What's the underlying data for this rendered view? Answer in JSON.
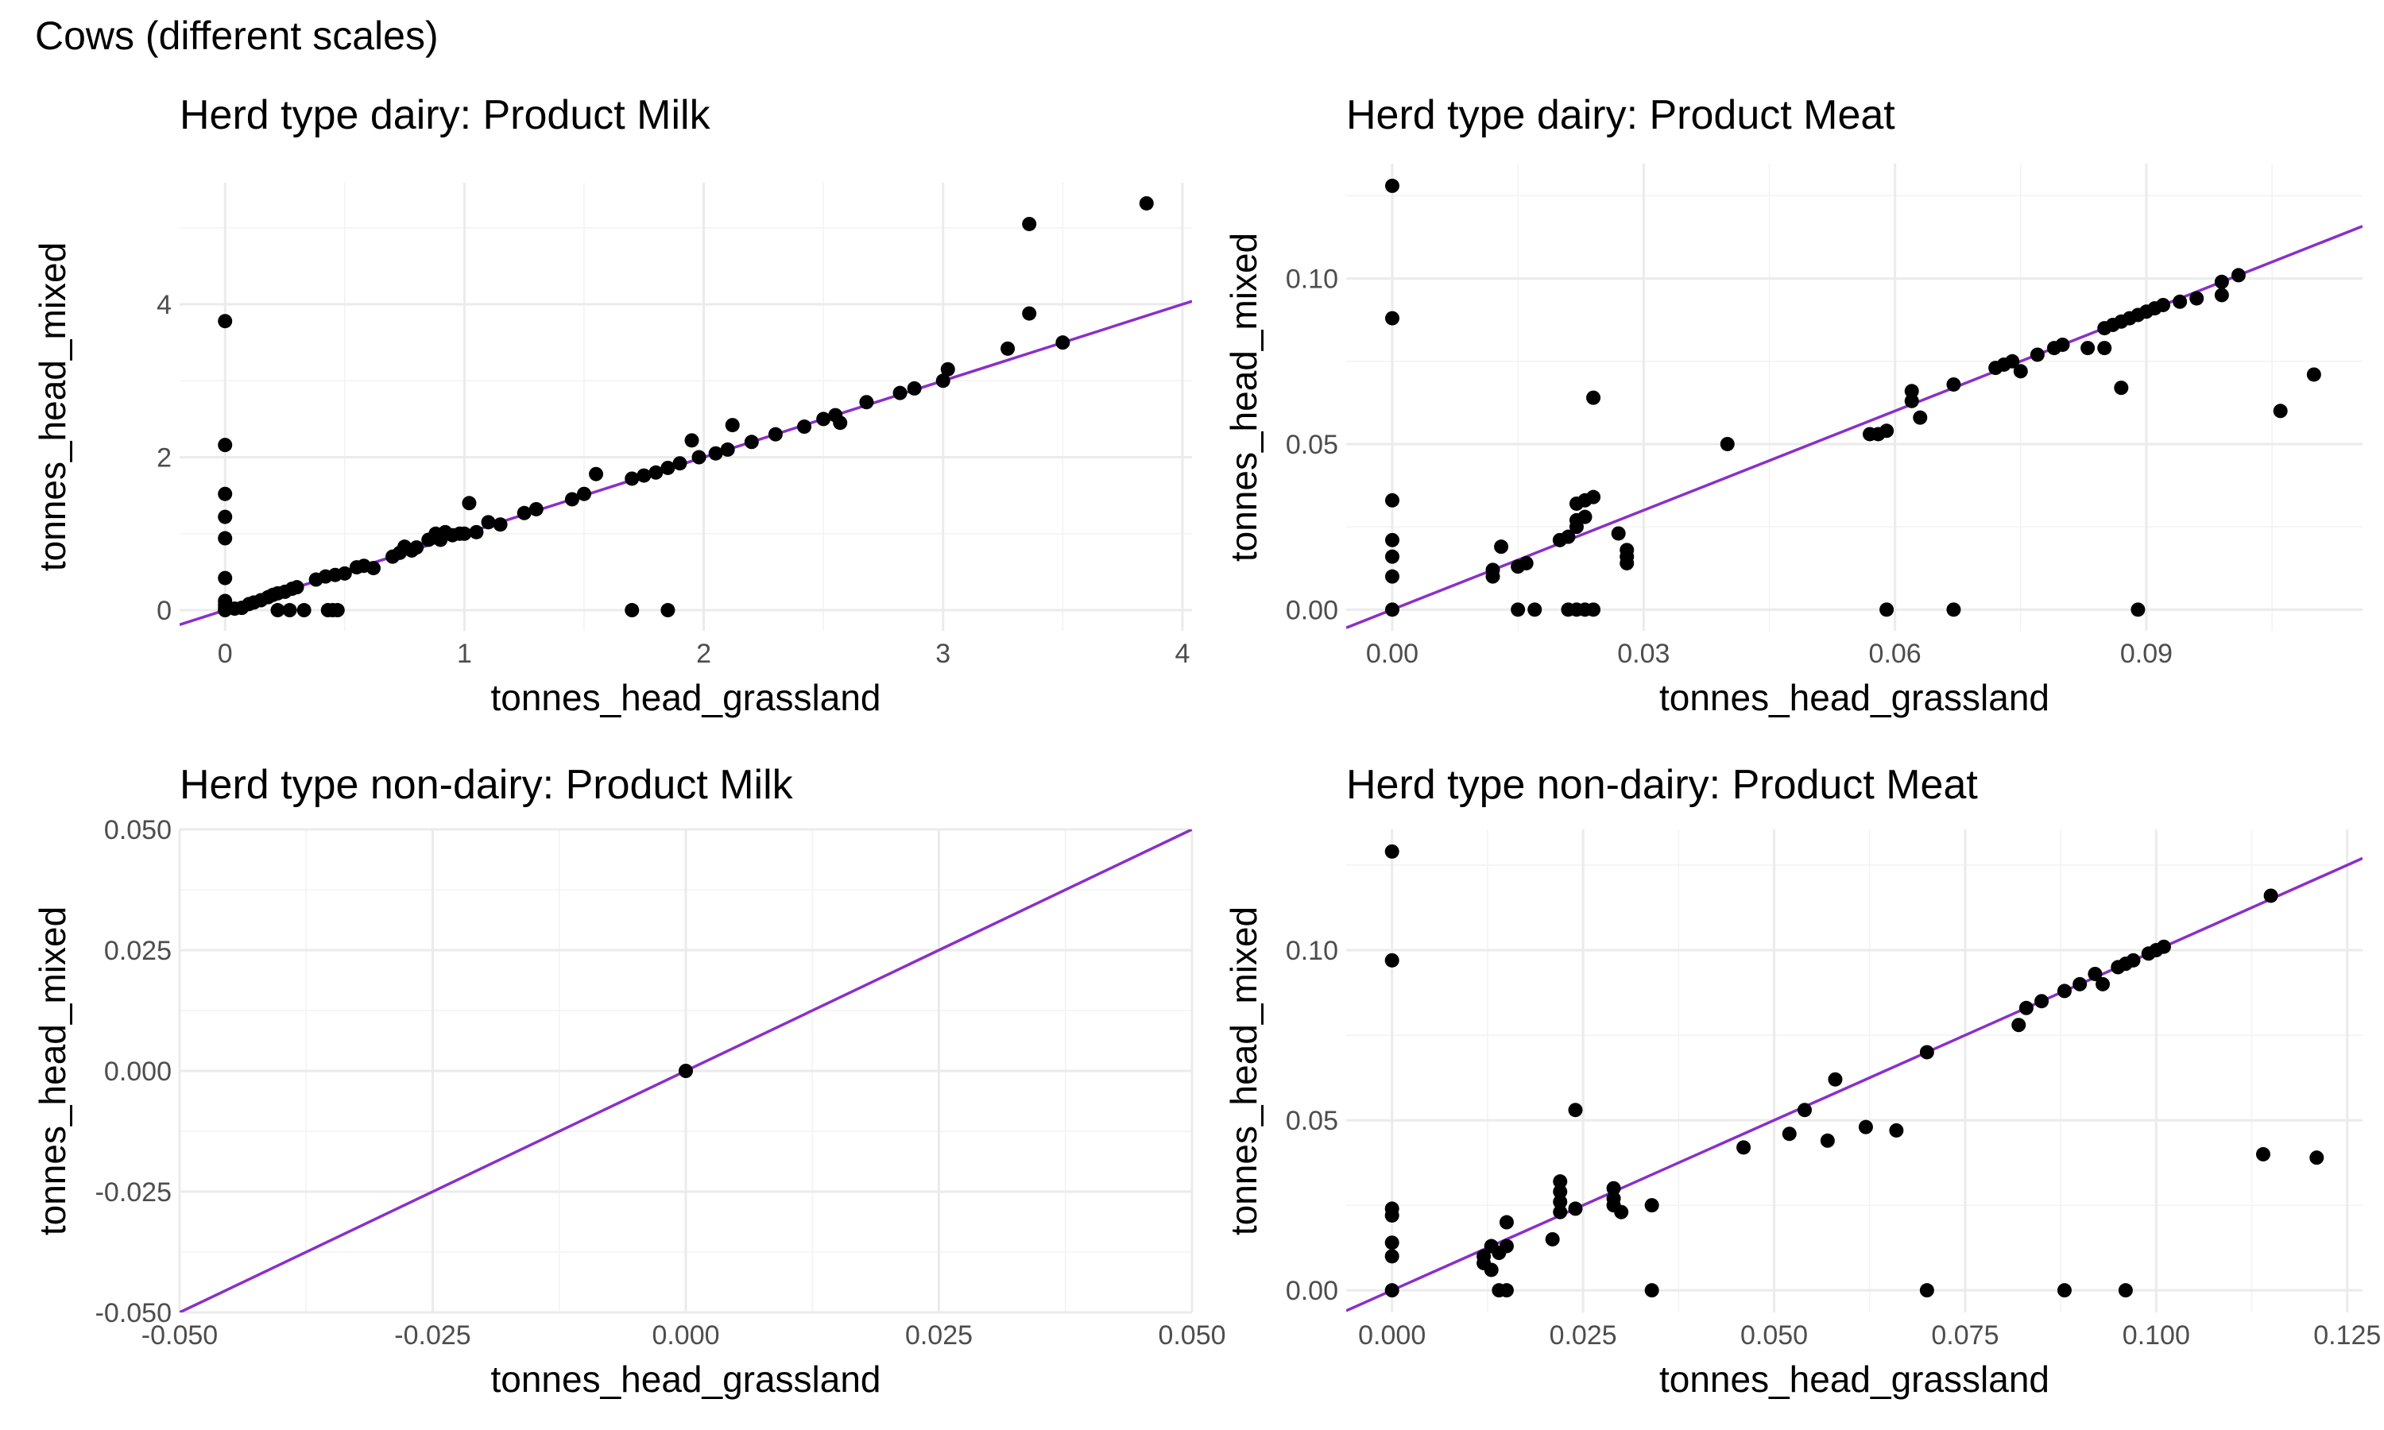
{
  "figure": {
    "title": "Cows (different scales)"
  },
  "colors": {
    "line": "#8b2fc9",
    "points": "#000000",
    "grid": "#ebebeb"
  },
  "chart_data": [
    {
      "id": "dairy-milk",
      "type": "scatter",
      "title": "Herd type dairy: Product Milk",
      "xlabel": "tonnes_head_grassland",
      "ylabel": "tonnes_head_mixed",
      "xlim": [
        -0.19,
        4.04
      ],
      "ylim": [
        -0.27,
        5.59
      ],
      "xticks": [
        0,
        1,
        2,
        3,
        4
      ],
      "xtick_labels": [
        "0",
        "1",
        "2",
        "3",
        "4"
      ],
      "yticks": [
        0,
        2,
        4
      ],
      "ytick_labels": [
        "0",
        "2",
        "4"
      ],
      "grid": true,
      "fit_line": {
        "slope": 1.0,
        "intercept": 0.0
      },
      "points": [
        [
          0,
          3.78
        ],
        [
          0,
          2.16
        ],
        [
          0,
          1.52
        ],
        [
          0,
          1.22
        ],
        [
          0,
          0.94
        ],
        [
          0,
          0.42
        ],
        [
          0,
          0.12
        ],
        [
          0,
          0.07
        ],
        [
          0,
          0.03
        ],
        [
          0,
          0
        ],
        [
          0.04,
          0.02
        ],
        [
          0.07,
          0.03
        ],
        [
          0.1,
          0.08
        ],
        [
          0.12,
          0.1
        ],
        [
          0.15,
          0.13
        ],
        [
          0.18,
          0.17
        ],
        [
          0.2,
          0.2
        ],
        [
          0.22,
          0.22
        ],
        [
          0.25,
          0.24
        ],
        [
          0.28,
          0.28
        ],
        [
          0.3,
          0.3
        ],
        [
          0.22,
          0.0
        ],
        [
          0.27,
          0.0
        ],
        [
          0.33,
          0.0
        ],
        [
          0.43,
          0.0
        ],
        [
          0.45,
          0.0
        ],
        [
          0.47,
          0.0
        ],
        [
          0.38,
          0.4
        ],
        [
          0.42,
          0.44
        ],
        [
          0.46,
          0.46
        ],
        [
          0.5,
          0.48
        ],
        [
          0.55,
          0.56
        ],
        [
          0.58,
          0.58
        ],
        [
          0.62,
          0.55
        ],
        [
          0.7,
          0.7
        ],
        [
          0.73,
          0.75
        ],
        [
          0.75,
          0.83
        ],
        [
          0.78,
          0.78
        ],
        [
          0.8,
          0.82
        ],
        [
          0.85,
          0.92
        ],
        [
          0.88,
          1.0
        ],
        [
          0.9,
          0.92
        ],
        [
          0.92,
          1.02
        ],
        [
          0.95,
          0.98
        ],
        [
          0.98,
          1.0
        ],
        [
          1.0,
          1.0
        ],
        [
          1.02,
          1.4
        ],
        [
          1.05,
          1.02
        ],
        [
          1.1,
          1.15
        ],
        [
          1.15,
          1.12
        ],
        [
          1.25,
          1.27
        ],
        [
          1.3,
          1.32
        ],
        [
          1.45,
          1.45
        ],
        [
          1.5,
          1.52
        ],
        [
          1.55,
          1.78
        ],
        [
          1.7,
          1.72
        ],
        [
          1.75,
          1.76
        ],
        [
          1.8,
          1.8
        ],
        [
          1.85,
          1.86
        ],
        [
          1.9,
          1.92
        ],
        [
          1.95,
          2.22
        ],
        [
          1.98,
          2.0
        ],
        [
          2.05,
          2.05
        ],
        [
          2.1,
          2.1
        ],
        [
          2.12,
          2.42
        ],
        [
          2.2,
          2.2
        ],
        [
          2.3,
          2.3
        ],
        [
          2.42,
          2.4
        ],
        [
          2.5,
          2.5
        ],
        [
          2.55,
          2.55
        ],
        [
          2.57,
          2.45
        ],
        [
          2.68,
          2.72
        ],
        [
          2.82,
          2.84
        ],
        [
          2.88,
          2.9
        ],
        [
          3.0,
          3.0
        ],
        [
          3.02,
          3.15
        ],
        [
          3.27,
          3.42
        ],
        [
          3.36,
          3.88
        ],
        [
          3.36,
          5.05
        ],
        [
          3.5,
          3.5
        ],
        [
          3.85,
          5.32
        ],
        [
          1.7,
          0.0
        ],
        [
          1.85,
          0.0
        ]
      ]
    },
    {
      "id": "dairy-meat",
      "type": "scatter",
      "title": "Herd type dairy: Product Meat",
      "xlabel": "tonnes_head_grassland",
      "ylabel": "tonnes_head_mixed",
      "xlim": [
        -0.0055,
        0.1158
      ],
      "ylim": [
        -0.0064,
        0.1347
      ],
      "xticks": [
        0.0,
        0.03,
        0.06,
        0.09
      ],
      "xtick_labels": [
        "0.00",
        "0.03",
        "0.06",
        "0.09"
      ],
      "yticks": [
        0.0,
        0.05,
        0.1
      ],
      "ytick_labels": [
        "0.00",
        "0.05",
        "0.10"
      ],
      "grid": true,
      "fit_line": {
        "slope": 1.0,
        "intercept": 0.0
      },
      "points": [
        [
          0,
          0.128
        ],
        [
          0,
          0.088
        ],
        [
          0,
          0.033
        ],
        [
          0,
          0.021
        ],
        [
          0,
          0.016
        ],
        [
          0,
          0.01
        ],
        [
          0,
          0
        ],
        [
          0.012,
          0.012
        ],
        [
          0.012,
          0.01
        ],
        [
          0.013,
          0.019
        ],
        [
          0.015,
          0.013
        ],
        [
          0.016,
          0.014
        ],
        [
          0.015,
          0
        ],
        [
          0.017,
          0
        ],
        [
          0.02,
          0.021
        ],
        [
          0.021,
          0.022
        ],
        [
          0.022,
          0.025
        ],
        [
          0.022,
          0.027
        ],
        [
          0.022,
          0.032
        ],
        [
          0.023,
          0.033
        ],
        [
          0.024,
          0.034
        ],
        [
          0.023,
          0.028
        ],
        [
          0.024,
          0.064
        ],
        [
          0.021,
          0
        ],
        [
          0.022,
          0
        ],
        [
          0.023,
          0
        ],
        [
          0.024,
          0
        ],
        [
          0.027,
          0.023
        ],
        [
          0.028,
          0.018
        ],
        [
          0.028,
          0.016
        ],
        [
          0.028,
          0.014
        ],
        [
          0.04,
          0.05
        ],
        [
          0.057,
          0.053
        ],
        [
          0.058,
          0.053
        ],
        [
          0.059,
          0.054
        ],
        [
          0.062,
          0.066
        ],
        [
          0.062,
          0.063
        ],
        [
          0.063,
          0.058
        ],
        [
          0.067,
          0.068
        ],
        [
          0.059,
          0
        ],
        [
          0.067,
          0
        ],
        [
          0.072,
          0.073
        ],
        [
          0.073,
          0.074
        ],
        [
          0.074,
          0.075
        ],
        [
          0.075,
          0.072
        ],
        [
          0.077,
          0.077
        ],
        [
          0.079,
          0.079
        ],
        [
          0.08,
          0.08
        ],
        [
          0.083,
          0.079
        ],
        [
          0.085,
          0.085
        ],
        [
          0.086,
          0.086
        ],
        [
          0.087,
          0.087
        ],
        [
          0.088,
          0.088
        ],
        [
          0.089,
          0.089
        ],
        [
          0.09,
          0.09
        ],
        [
          0.091,
          0.091
        ],
        [
          0.092,
          0.092
        ],
        [
          0.094,
          0.093
        ],
        [
          0.096,
          0.094
        ],
        [
          0.099,
          0.099
        ],
        [
          0.099,
          0.095
        ],
        [
          0.101,
          0.101
        ],
        [
          0.085,
          0.079
        ],
        [
          0.087,
          0.067
        ],
        [
          0.089,
          0
        ],
        [
          0.106,
          0.06
        ],
        [
          0.11,
          0.071
        ]
      ]
    },
    {
      "id": "nondairy-milk",
      "type": "scatter",
      "title": "Herd type non-dairy: Product Milk",
      "xlabel": "tonnes_head_grassland",
      "ylabel": "tonnes_head_mixed",
      "xlim": [
        -0.05,
        0.05
      ],
      "ylim": [
        -0.05,
        0.05
      ],
      "xticks": [
        -0.05,
        -0.025,
        0.0,
        0.025,
        0.05
      ],
      "xtick_labels": [
        "-0.050",
        "-0.025",
        "0.000",
        "0.025",
        "0.050"
      ],
      "yticks": [
        -0.05,
        -0.025,
        0.0,
        0.025,
        0.05
      ],
      "ytick_labels": [
        "-0.050",
        "-0.025",
        "0.000",
        "0.025",
        "0.050"
      ],
      "grid": true,
      "fit_line": {
        "slope": 1.0,
        "intercept": 0.0
      },
      "points": [
        [
          0,
          0
        ]
      ]
    },
    {
      "id": "nondairy-meat",
      "type": "scatter",
      "title": "Herd type non-dairy: Product Meat",
      "xlabel": "tonnes_head_grassland",
      "ylabel": "tonnes_head_mixed",
      "xlim": [
        -0.006,
        0.127
      ],
      "ylim": [
        -0.0065,
        0.1355
      ],
      "xticks": [
        0.0,
        0.025,
        0.05,
        0.075,
        0.1,
        0.125
      ],
      "xtick_labels": [
        "0.000",
        "0.025",
        "0.050",
        "0.075",
        "0.100",
        "0.125"
      ],
      "yticks": [
        0.0,
        0.05,
        0.1
      ],
      "ytick_labels": [
        "0.00",
        "0.05",
        "0.10"
      ],
      "grid": true,
      "fit_line": {
        "slope": 1.0,
        "intercept": 0.0
      },
      "points": [
        [
          0,
          0.129
        ],
        [
          0,
          0.097
        ],
        [
          0,
          0.024
        ],
        [
          0,
          0.022
        ],
        [
          0,
          0.014
        ],
        [
          0,
          0.01
        ],
        [
          0,
          0
        ],
        [
          0.012,
          0.01
        ],
        [
          0.012,
          0.008
        ],
        [
          0.013,
          0.006
        ],
        [
          0.013,
          0.013
        ],
        [
          0.014,
          0.011
        ],
        [
          0.014,
          0.0
        ],
        [
          0.015,
          0.0
        ],
        [
          0.015,
          0.02
        ],
        [
          0.015,
          0.013
        ],
        [
          0.021,
          0.015
        ],
        [
          0.022,
          0.032
        ],
        [
          0.022,
          0.029
        ],
        [
          0.022,
          0.026
        ],
        [
          0.022,
          0.023
        ],
        [
          0.024,
          0.024
        ],
        [
          0.024,
          0.053
        ],
        [
          0.029,
          0.03
        ],
        [
          0.029,
          0.027
        ],
        [
          0.029,
          0.025
        ],
        [
          0.03,
          0.023
        ],
        [
          0.034,
          0.025
        ],
        [
          0.034,
          0.0
        ],
        [
          0.046,
          0.042
        ],
        [
          0.052,
          0.046
        ],
        [
          0.054,
          0.053
        ],
        [
          0.057,
          0.044
        ],
        [
          0.058,
          0.062
        ],
        [
          0.062,
          0.048
        ],
        [
          0.066,
          0.047
        ],
        [
          0.07,
          0.07
        ],
        [
          0.07,
          0.0
        ],
        [
          0.082,
          0.078
        ],
        [
          0.083,
          0.083
        ],
        [
          0.085,
          0.085
        ],
        [
          0.088,
          0.088
        ],
        [
          0.09,
          0.09
        ],
        [
          0.092,
          0.093
        ],
        [
          0.093,
          0.09
        ],
        [
          0.095,
          0.095
        ],
        [
          0.096,
          0.096
        ],
        [
          0.097,
          0.097
        ],
        [
          0.099,
          0.099
        ],
        [
          0.1,
          0.1
        ],
        [
          0.101,
          0.101
        ],
        [
          0.088,
          0.0
        ],
        [
          0.096,
          0.0
        ],
        [
          0.114,
          0.04
        ],
        [
          0.115,
          0.116
        ],
        [
          0.121,
          0.039
        ]
      ]
    }
  ]
}
